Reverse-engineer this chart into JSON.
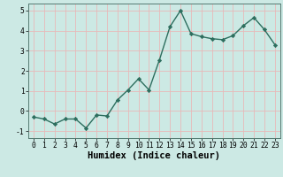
{
  "x": [
    0,
    1,
    2,
    3,
    4,
    5,
    6,
    7,
    8,
    9,
    10,
    11,
    12,
    13,
    14,
    15,
    16,
    17,
    18,
    19,
    20,
    21,
    22,
    23
  ],
  "y": [
    -0.3,
    -0.4,
    -0.65,
    -0.4,
    -0.4,
    -0.85,
    -0.2,
    -0.25,
    0.55,
    1.05,
    1.6,
    1.05,
    2.55,
    4.2,
    5.0,
    3.85,
    3.7,
    3.6,
    3.55,
    3.75,
    4.25,
    4.65,
    4.05,
    3.3
  ],
  "line_color": "#2d6e5e",
  "marker": "D",
  "marker_size": 2.2,
  "line_width": 1.0,
  "xlabel": "Humidex (Indice chaleur)",
  "xlim": [
    -0.5,
    23.5
  ],
  "ylim": [
    -1.35,
    5.35
  ],
  "yticks": [
    -1,
    0,
    1,
    2,
    3,
    4,
    5
  ],
  "xticks": [
    0,
    1,
    2,
    3,
    4,
    5,
    6,
    7,
    8,
    9,
    10,
    11,
    12,
    13,
    14,
    15,
    16,
    17,
    18,
    19,
    20,
    21,
    22,
    23
  ],
  "bg_color": "#cce9e4",
  "grid_color": "#e8b8b8",
  "tick_fontsize": 5.8,
  "xlabel_fontsize": 7.5,
  "xlabel_fontweight": "bold"
}
